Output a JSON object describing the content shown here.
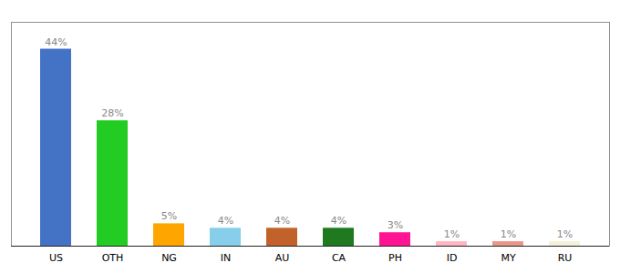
{
  "chart_data": {
    "type": "bar",
    "categories": [
      "US",
      "OTH",
      "NG",
      "IN",
      "AU",
      "CA",
      "PH",
      "ID",
      "MY",
      "RU"
    ],
    "values": [
      44,
      28,
      5,
      4,
      4,
      4,
      3,
      1,
      1,
      1
    ],
    "value_labels": [
      "44%",
      "28%",
      "5%",
      "4%",
      "4%",
      "4%",
      "3%",
      "1%",
      "1%",
      "1%"
    ],
    "colors": [
      "#4472C4",
      "#22CC22",
      "#FFA500",
      "#87CEEB",
      "#C0622A",
      "#1F7A1F",
      "#FF1493",
      "#FFB6C1",
      "#E8978A",
      "#F5F0DC"
    ],
    "ylim": [
      0,
      50
    ],
    "data_labels": true,
    "tick_labels": "x",
    "grid": false
  }
}
